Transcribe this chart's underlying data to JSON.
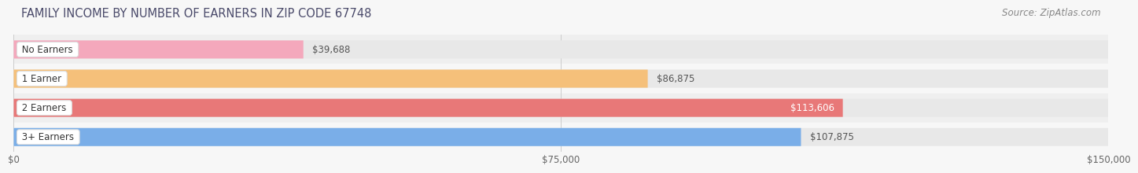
{
  "title": "FAMILY INCOME BY NUMBER OF EARNERS IN ZIP CODE 67748",
  "source": "Source: ZipAtlas.com",
  "categories": [
    "No Earners",
    "1 Earner",
    "2 Earners",
    "3+ Earners"
  ],
  "values": [
    39688,
    86875,
    113606,
    107875
  ],
  "bar_colors": [
    "#f4a8bc",
    "#f5c07a",
    "#e87878",
    "#7aaee8"
  ],
  "bar_bg_color": "#e8e8e8",
  "max_value": 150000,
  "x_ticks": [
    0,
    75000,
    150000
  ],
  "x_tick_labels": [
    "$0",
    "$75,000",
    "$150,000"
  ],
  "background_color": "#f7f7f7",
  "title_fontsize": 10.5,
  "source_fontsize": 8.5,
  "bar_height": 0.62,
  "value_label_fontsize": 8.5,
  "category_fontsize": 8.5,
  "inside_label_threshold": 0.72
}
